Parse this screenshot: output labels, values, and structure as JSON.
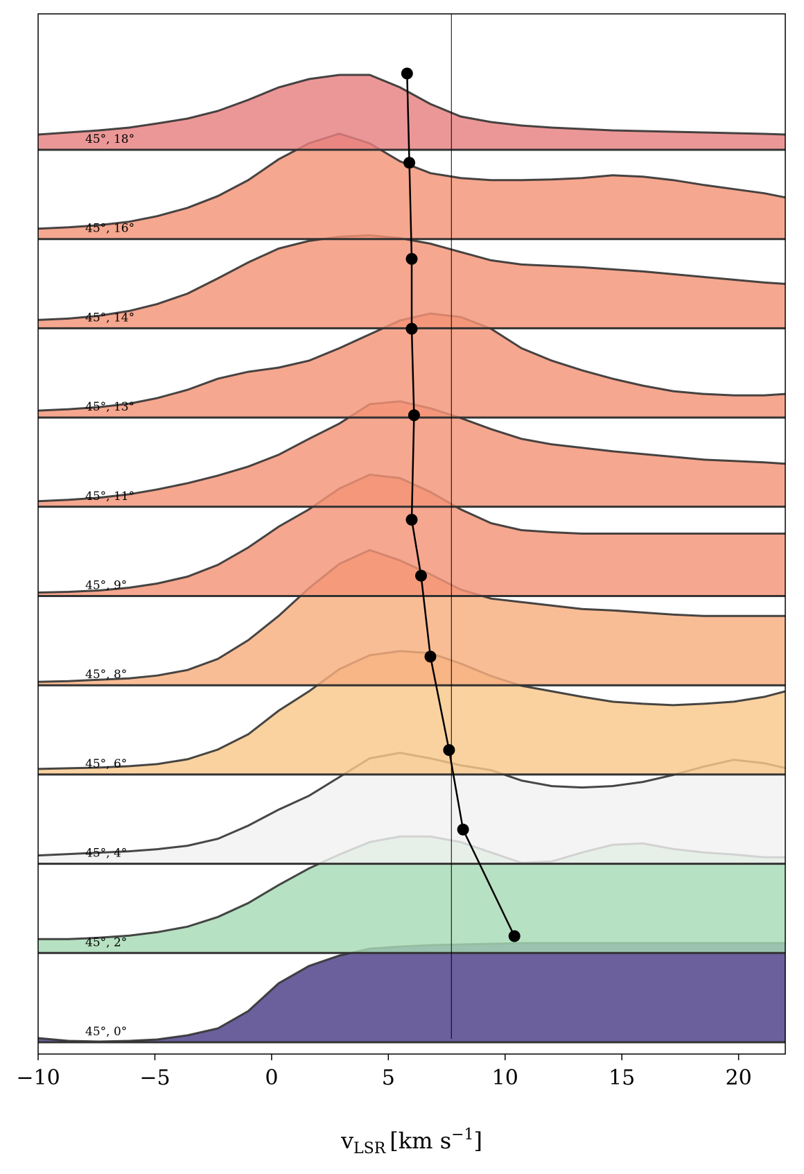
{
  "chart_data": {
    "type": "area",
    "xlabel_main": "v",
    "xlabel_sub": "LSR",
    "xlabel_unit": "[km s",
    "xlabel_exp": "−1",
    "xlabel_close": "]",
    "xlim": [
      -10,
      22
    ],
    "x_ticks": [
      -10,
      -5,
      0,
      5,
      10,
      15,
      20
    ],
    "x_tick_labels": [
      "−10",
      "−5",
      "0",
      "5",
      "10",
      "15",
      "20"
    ],
    "reference_line_x": 7.7,
    "x": [
      -10,
      -8.7,
      -7.4,
      -6.1,
      -4.9,
      -3.6,
      -2.3,
      -1.0,
      0.3,
      1.6,
      2.9,
      4.2,
      5.5,
      6.8,
      8.1,
      9.4,
      10.7,
      12.0,
      13.3,
      14.6,
      15.9,
      17.2,
      18.5,
      19.8,
      21.1,
      22
    ],
    "series": [
      {
        "name": "45°, 0°",
        "color": "#4a3d86",
        "values": [
          0.06,
          0.02,
          0.01,
          0.02,
          0.04,
          0.1,
          0.2,
          0.45,
          0.85,
          1.1,
          1.25,
          1.35,
          1.38,
          1.4,
          1.41,
          1.42,
          1.43,
          1.43,
          1.43,
          1.43,
          1.43,
          1.43,
          1.43,
          1.43,
          1.43,
          1.43
        ]
      },
      {
        "name": "45°, 2°",
        "color": "#a6dbb4",
        "values": [
          0.2,
          0.2,
          0.22,
          0.25,
          0.3,
          0.38,
          0.52,
          0.72,
          0.98,
          1.22,
          1.42,
          1.6,
          1.68,
          1.68,
          1.6,
          1.45,
          1.3,
          1.32,
          1.45,
          1.56,
          1.58,
          1.5,
          1.45,
          1.42,
          1.38,
          1.38
        ]
      },
      {
        "name": "45°, 4°",
        "color": "#f2f2f2",
        "values": [
          0.12,
          0.14,
          0.16,
          0.18,
          0.21,
          0.26,
          0.36,
          0.55,
          0.78,
          0.98,
          1.25,
          1.52,
          1.6,
          1.52,
          1.42,
          1.35,
          1.2,
          1.12,
          1.1,
          1.12,
          1.18,
          1.28,
          1.4,
          1.5,
          1.45,
          1.38
        ]
      },
      {
        "name": "45°, 6°",
        "color": "#f9c88a",
        "values": [
          0.08,
          0.09,
          0.1,
          0.12,
          0.15,
          0.22,
          0.36,
          0.58,
          0.92,
          1.2,
          1.52,
          1.72,
          1.78,
          1.75,
          1.6,
          1.42,
          1.28,
          1.2,
          1.12,
          1.05,
          1.02,
          1.0,
          1.02,
          1.05,
          1.12,
          1.2
        ]
      },
      {
        "name": "45°, 8°",
        "color": "#f8ae7f",
        "values": [
          0.05,
          0.06,
          0.08,
          0.1,
          0.14,
          0.22,
          0.38,
          0.65,
          1.0,
          1.4,
          1.75,
          1.95,
          1.8,
          1.6,
          1.38,
          1.25,
          1.2,
          1.15,
          1.1,
          1.08,
          1.05,
          1.02,
          1.0,
          1.0,
          1.0,
          1.0
        ]
      },
      {
        "name": "45°, 9°",
        "color": "#f49476",
        "values": [
          0.05,
          0.06,
          0.08,
          0.12,
          0.18,
          0.28,
          0.45,
          0.7,
          1.0,
          1.25,
          1.55,
          1.75,
          1.7,
          1.5,
          1.25,
          1.05,
          0.95,
          0.92,
          0.9,
          0.9,
          0.9,
          0.9,
          0.9,
          0.9,
          0.9,
          0.9
        ]
      },
      {
        "name": "45°, 11°",
        "color": "#f49476",
        "values": [
          0.08,
          0.1,
          0.13,
          0.18,
          0.25,
          0.34,
          0.45,
          0.58,
          0.75,
          0.98,
          1.2,
          1.48,
          1.52,
          1.42,
          1.28,
          1.12,
          0.98,
          0.9,
          0.85,
          0.8,
          0.76,
          0.72,
          0.68,
          0.66,
          0.64,
          0.62
        ]
      },
      {
        "name": "45°, 13°",
        "color": "#f49476",
        "values": [
          0.1,
          0.12,
          0.15,
          0.2,
          0.28,
          0.4,
          0.56,
          0.66,
          0.72,
          0.82,
          1.0,
          1.2,
          1.4,
          1.5,
          1.45,
          1.28,
          1.0,
          0.82,
          0.68,
          0.56,
          0.46,
          0.38,
          0.34,
          0.32,
          0.32,
          0.34
        ]
      },
      {
        "name": "45°, 14°",
        "color": "#f49476",
        "values": [
          0.12,
          0.14,
          0.18,
          0.25,
          0.35,
          0.5,
          0.72,
          0.95,
          1.15,
          1.26,
          1.32,
          1.34,
          1.3,
          1.22,
          1.1,
          0.98,
          0.92,
          0.9,
          0.88,
          0.85,
          0.82,
          0.78,
          0.74,
          0.7,
          0.66,
          0.64
        ]
      },
      {
        "name": "45°, 16°",
        "color": "#f49476",
        "values": [
          0.15,
          0.17,
          0.2,
          0.25,
          0.33,
          0.45,
          0.62,
          0.85,
          1.15,
          1.38,
          1.52,
          1.38,
          1.12,
          0.95,
          0.88,
          0.85,
          0.85,
          0.86,
          0.88,
          0.92,
          0.9,
          0.85,
          0.78,
          0.72,
          0.66,
          0.6
        ]
      },
      {
        "name": "45°, 18°",
        "color": "#e88080",
        "values": [
          0.22,
          0.25,
          0.28,
          0.32,
          0.38,
          0.45,
          0.56,
          0.72,
          0.9,
          1.02,
          1.08,
          1.08,
          0.9,
          0.66,
          0.48,
          0.4,
          0.35,
          0.32,
          0.3,
          0.28,
          0.27,
          0.26,
          0.25,
          0.24,
          0.23,
          0.22
        ]
      }
    ],
    "peak_track": {
      "color": "#000000",
      "points": [
        {
          "x": 10.4,
          "value": 1.53
        },
        {
          "x": 8.2,
          "value": 1.78
        },
        {
          "x": 7.6,
          "value": 1.64
        },
        {
          "x": 6.8,
          "value": 1.7
        },
        {
          "x": 6.4,
          "value": 1.58
        },
        {
          "x": 6.0,
          "value": 1.1
        },
        {
          "x": 6.1,
          "value": 1.32
        },
        {
          "x": 6.0,
          "value": 1.28
        },
        {
          "x": 6.0,
          "value": 1.0
        },
        {
          "x": 5.9,
          "value": 1.1
        },
        {
          "x": 5.8,
          "value": 1.1
        }
      ]
    }
  }
}
